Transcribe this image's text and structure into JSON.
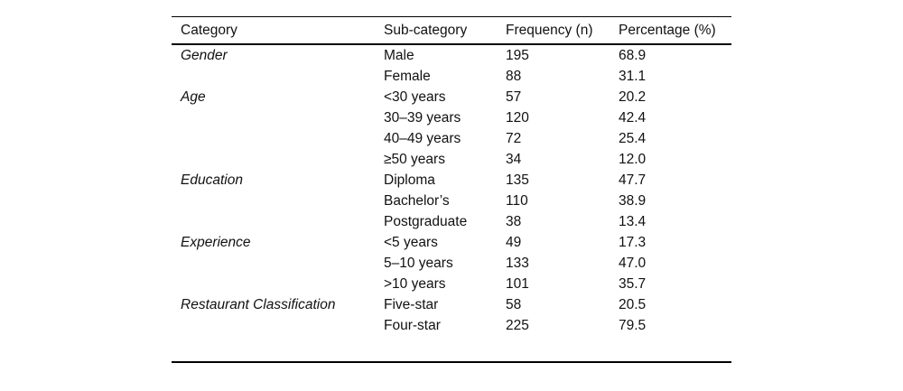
{
  "colors": {
    "background": "#ffffff",
    "text": "#111111",
    "rule": "#000000"
  },
  "table": {
    "headers": [
      "Category",
      "Sub-category",
      "Frequency (n)",
      "Percentage (%)"
    ],
    "rows": [
      {
        "category": "Gender",
        "sub": "Male",
        "freq": "195",
        "pct": "68.9"
      },
      {
        "category": "",
        "sub": "Female",
        "freq": "88",
        "pct": "31.1"
      },
      {
        "category": "Age",
        "sub": "<30 years",
        "freq": "57",
        "pct": "20.2"
      },
      {
        "category": "",
        "sub": "30–39 years",
        "freq": "120",
        "pct": "42.4"
      },
      {
        "category": "",
        "sub": "40–49 years",
        "freq": "72",
        "pct": "25.4"
      },
      {
        "category": "",
        "sub": "≥50 years",
        "freq": "34",
        "pct": "12.0"
      },
      {
        "category": "Education",
        "sub": "Diploma",
        "freq": "135",
        "pct": "47.7"
      },
      {
        "category": "",
        "sub": "Bachelor’s",
        "freq": "110",
        "pct": "38.9"
      },
      {
        "category": "",
        "sub": "Postgraduate",
        "freq": "38",
        "pct": "13.4"
      },
      {
        "category": "Experience",
        "sub": "<5 years",
        "freq": "49",
        "pct": "17.3"
      },
      {
        "category": "",
        "sub": "5–10 years",
        "freq": "133",
        "pct": "47.0"
      },
      {
        "category": "",
        "sub": ">10 years",
        "freq": "101",
        "pct": "35.7"
      },
      {
        "category": "Restaurant Classification",
        "sub": "Five-star",
        "freq": "58",
        "pct": "20.5"
      },
      {
        "category": "",
        "sub": "Four-star",
        "freq": "225",
        "pct": "79.5"
      }
    ]
  }
}
